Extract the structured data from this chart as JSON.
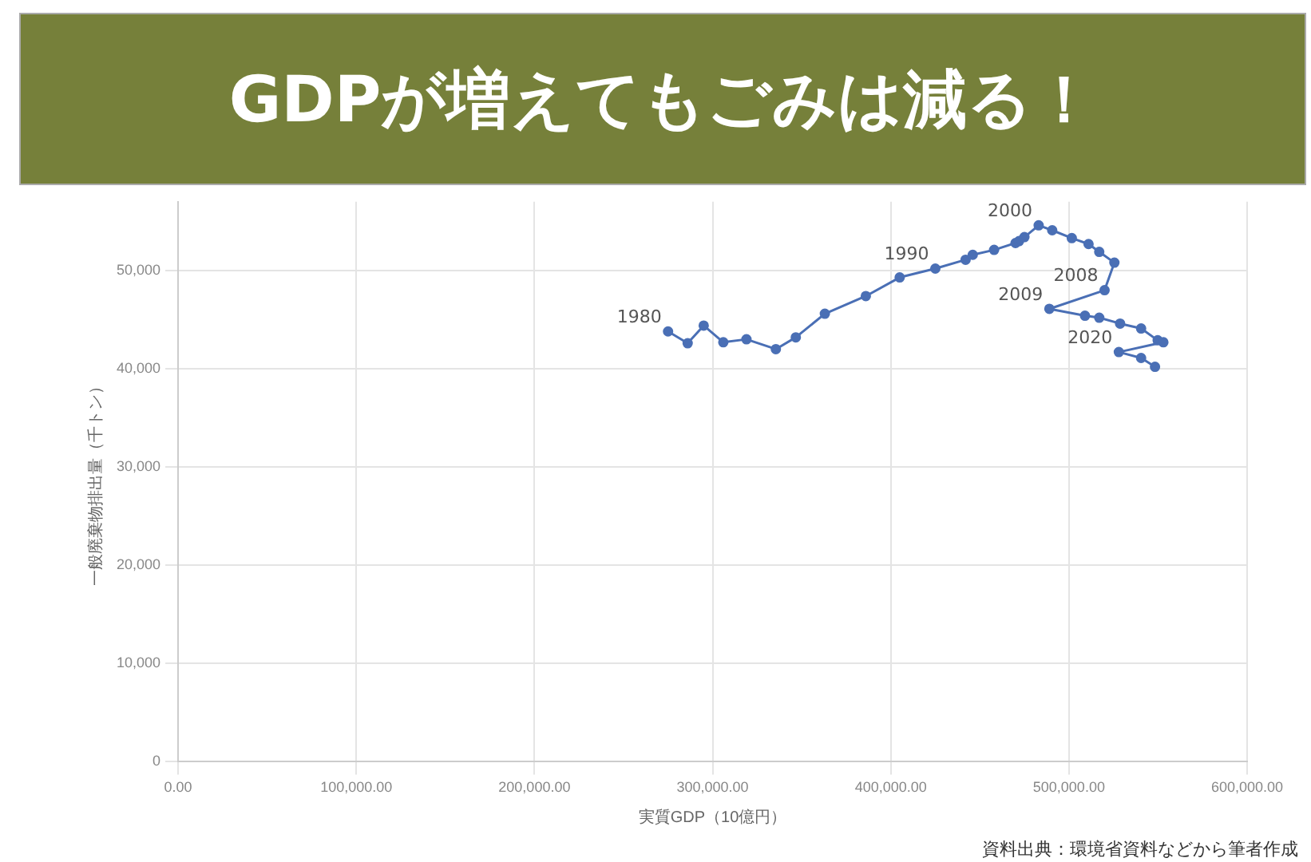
{
  "chart_data": {
    "type": "line",
    "title": "GDPが増えてもごみは減る！",
    "xlabel": "実質GDP（10億円）",
    "ylabel": "一般廃棄物排出量（千トン）",
    "series": [
      {
        "color": "#4a6fb5",
        "x": [
          275000,
          286000,
          295000,
          306000,
          319000,
          335500,
          346700,
          363000,
          386000,
          405000,
          425000,
          442000,
          446000,
          458000,
          470000,
          472000,
          475000,
          483000,
          490600,
          501600,
          511000,
          517000,
          525500,
          520000,
          489000,
          509000,
          517000,
          528700,
          540500,
          549800,
          553000,
          528000,
          540500,
          548300
        ],
        "values": [
          43800,
          42600,
          44400,
          42700,
          43000,
          42000,
          43200,
          45600,
          47400,
          49300,
          50200,
          51100,
          51600,
          52100,
          52800,
          53000,
          53400,
          54600,
          54100,
          53300,
          52700,
          51900,
          50800,
          48000,
          46100,
          45400,
          45200,
          44600,
          44100,
          42900,
          42700,
          41700,
          41100,
          40200
        ]
      }
    ],
    "xlim": [
      0,
      600000
    ],
    "xticks": [
      {
        "value": 0,
        "label": "0.00"
      },
      {
        "value": 100000,
        "label": "100,000.00"
      },
      {
        "value": 200000,
        "label": "200,000.00"
      },
      {
        "value": 300000,
        "label": "300,000.00"
      },
      {
        "value": 400000,
        "label": "400,000.00"
      },
      {
        "value": 500000,
        "label": "500,000.00"
      },
      {
        "value": 600000,
        "label": "600,000.00"
      }
    ],
    "ylim": [
      0,
      57000
    ],
    "yticks": [
      {
        "value": 0,
        "label": "0"
      },
      {
        "value": 10000,
        "label": "10,000"
      },
      {
        "value": 20000,
        "label": "20,000"
      },
      {
        "value": 30000,
        "label": "30,000"
      },
      {
        "value": 40000,
        "label": "40,000"
      },
      {
        "value": 50000,
        "label": "50,000"
      }
    ],
    "grid": true,
    "legend": false,
    "marker": "circle",
    "line_style": "solid",
    "annotations": [
      {
        "text": "1980",
        "x": 275000,
        "y": 43800
      },
      {
        "text": "1990",
        "x": 425000,
        "y": 50200
      },
      {
        "text": "2000",
        "x": 483000,
        "y": 54600
      },
      {
        "text": "2008",
        "x": 520000,
        "y": 48000
      },
      {
        "text": "2009",
        "x": 489000,
        "y": 46100
      },
      {
        "text": "2020",
        "x": 528000,
        "y": 41700
      },
      "資料出典：環境省資料などから筆者作成"
    ]
  }
}
